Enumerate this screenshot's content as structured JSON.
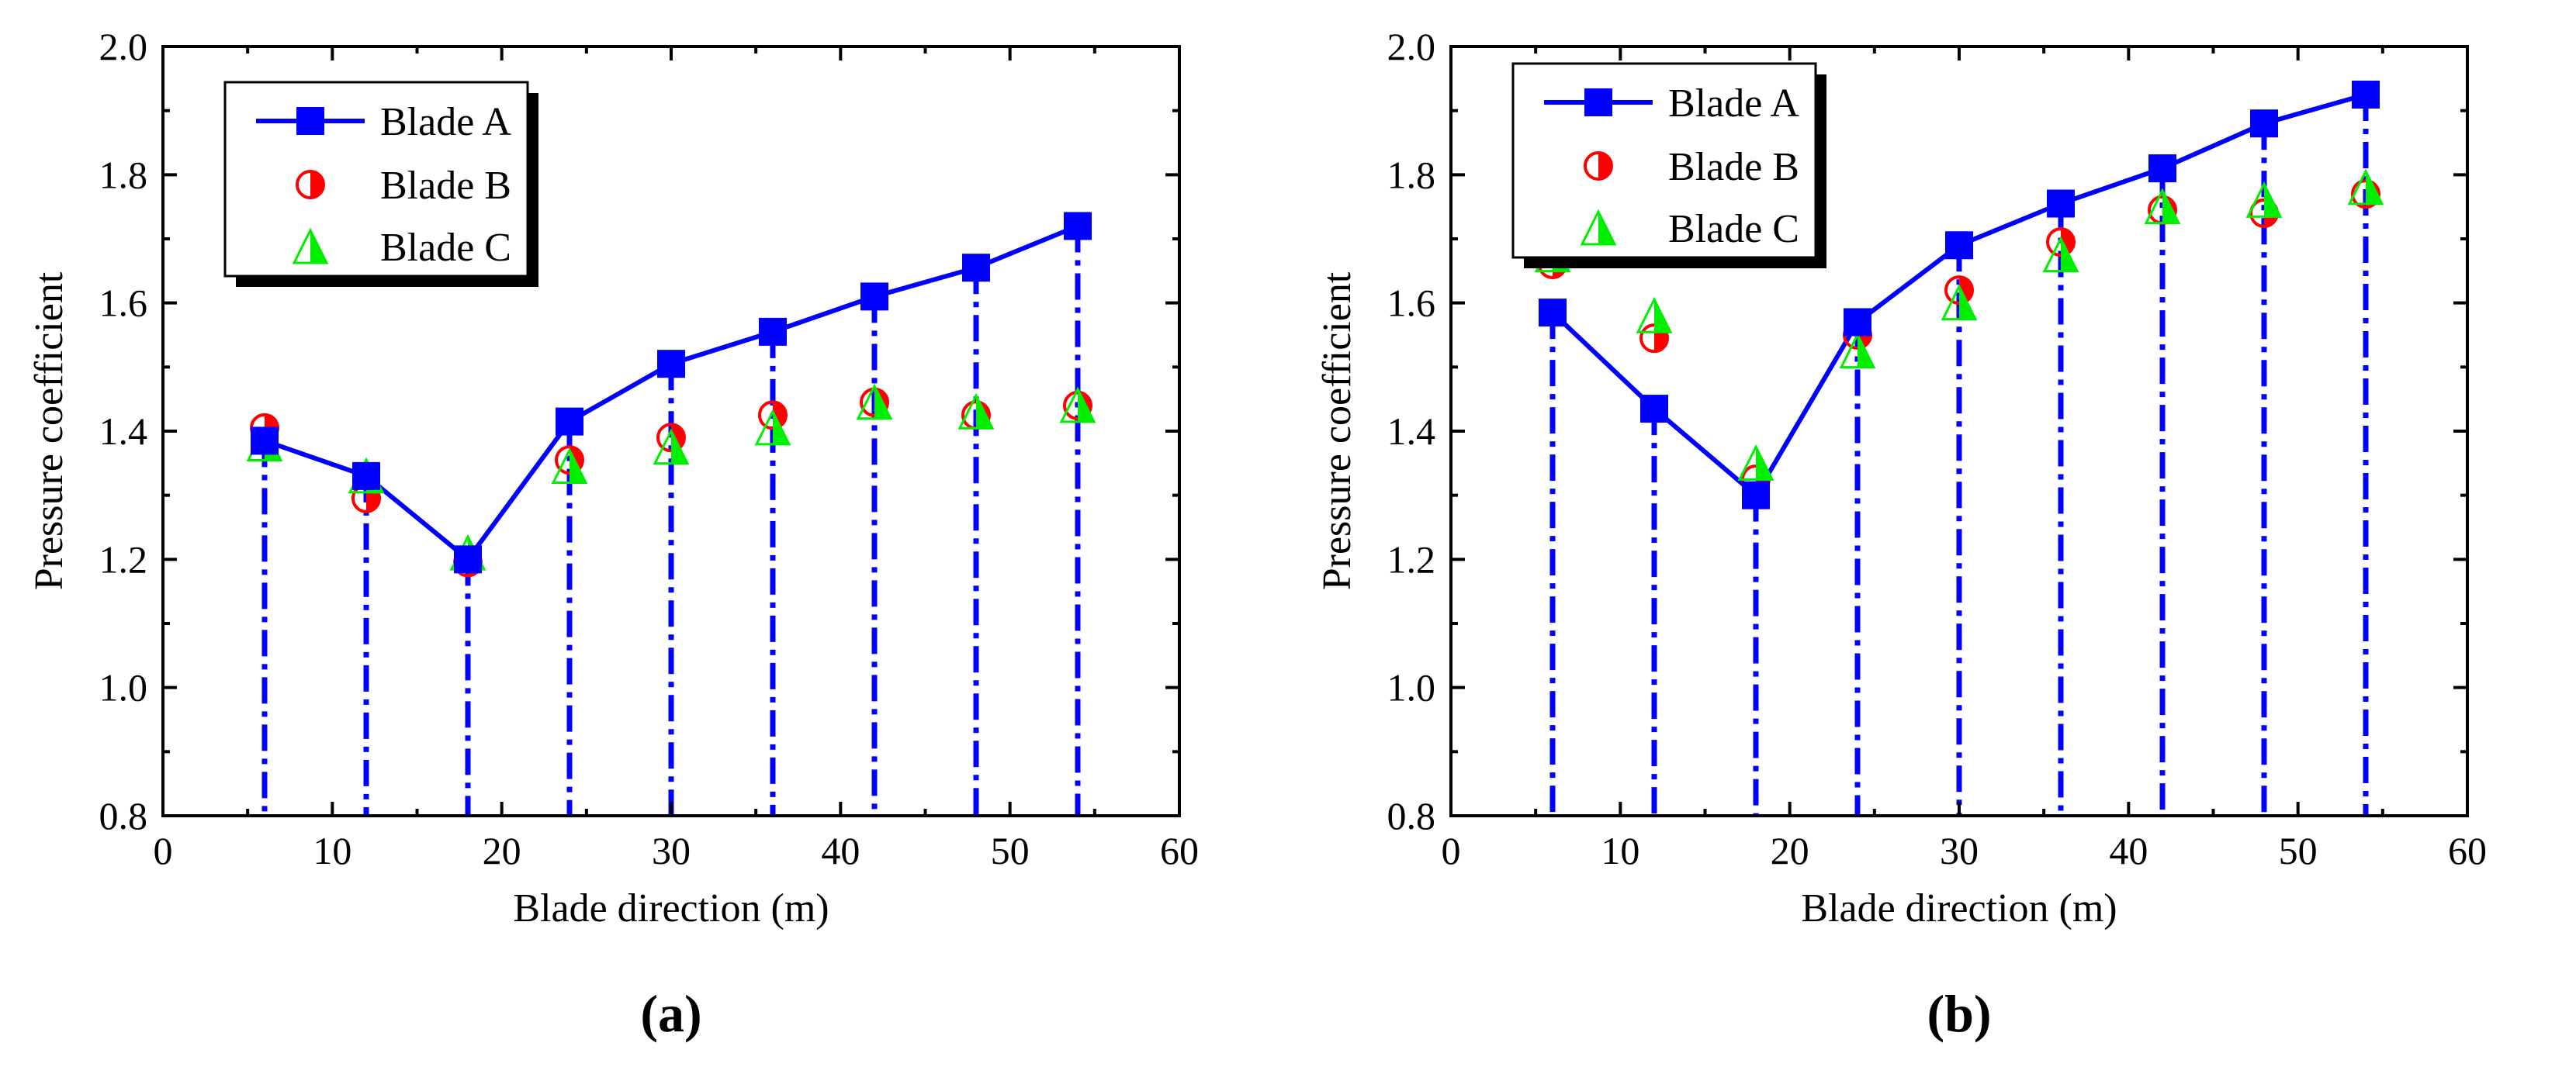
{
  "chart_data": [
    {
      "type": "line",
      "panel_label": "(a)",
      "xlabel": "Blade direction (m)",
      "ylabel": "Pressure coefficient",
      "xlim": [
        0,
        60
      ],
      "ylim": [
        0.8,
        2.0
      ],
      "xticks": [
        "0",
        "10",
        "20",
        "30",
        "40",
        "50",
        "60"
      ],
      "yticks": [
        "0.8",
        "1.0",
        "1.2",
        "1.4",
        "1.6",
        "1.8",
        "2.0"
      ],
      "x": [
        6,
        12,
        18,
        24,
        30,
        36,
        42,
        48,
        54
      ],
      "legend_position": "top-left",
      "series": [
        {
          "name": "Blade A",
          "marker": "square",
          "line": true,
          "color": "#0000ff",
          "values": [
            1.385,
            1.33,
            1.2,
            1.415,
            1.505,
            1.555,
            1.61,
            1.655,
            1.72
          ]
        },
        {
          "name": "Blade B",
          "marker": "half-circle",
          "line": false,
          "color": "#ff0000",
          "values": [
            1.405,
            1.295,
            1.195,
            1.355,
            1.39,
            1.425,
            1.445,
            1.425,
            1.44
          ]
        },
        {
          "name": "Blade C",
          "marker": "half-triangle",
          "line": false,
          "color": "#00ee00",
          "values": [
            1.38,
            1.33,
            1.21,
            1.345,
            1.375,
            1.405,
            1.445,
            1.43,
            1.44
          ]
        }
      ]
    },
    {
      "type": "line",
      "panel_label": "(b)",
      "xlabel": "Blade direction (m)",
      "ylabel": "Pressure coefficient",
      "xlim": [
        0,
        60
      ],
      "ylim": [
        0.8,
        2.0
      ],
      "xticks": [
        "0",
        "10",
        "20",
        "30",
        "40",
        "50",
        "60"
      ],
      "yticks": [
        "0.8",
        "1.0",
        "1.2",
        "1.4",
        "1.6",
        "1.8",
        "2.0"
      ],
      "x": [
        6,
        12,
        18,
        24,
        30,
        36,
        42,
        48,
        54
      ],
      "legend_position": "top-left",
      "series": [
        {
          "name": "Blade A",
          "marker": "square",
          "line": true,
          "color": "#0000ff",
          "values": [
            1.585,
            1.435,
            1.3,
            1.57,
            1.69,
            1.755,
            1.81,
            1.88,
            1.925
          ]
        },
        {
          "name": "Blade B",
          "marker": "half-circle",
          "line": false,
          "color": "#ff0000",
          "values": [
            1.66,
            1.545,
            1.325,
            1.55,
            1.62,
            1.695,
            1.745,
            1.74,
            1.77
          ]
        },
        {
          "name": "Blade C",
          "marker": "half-triangle",
          "line": false,
          "color": "#00ee00",
          "values": [
            1.675,
            1.58,
            1.35,
            1.525,
            1.6,
            1.675,
            1.75,
            1.76,
            1.78
          ]
        }
      ]
    }
  ]
}
